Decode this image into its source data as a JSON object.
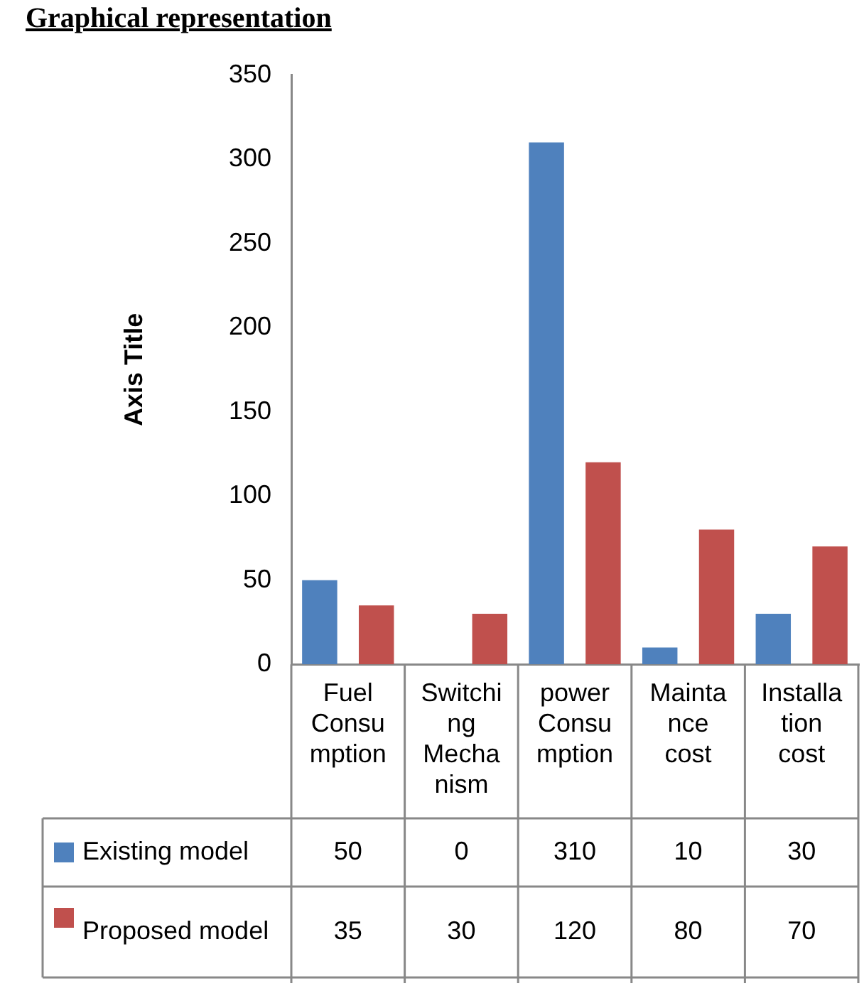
{
  "chart_data": {
    "type": "bar",
    "title": "Graphical representation",
    "ylabel": "Axis Title",
    "categories": [
      "Fuel Consumption",
      "Switching Mechanism",
      "power Consumption",
      "Maintance cost",
      "Installation cost"
    ],
    "series": [
      {
        "name": "Existing model",
        "color": "#4f81bd",
        "values": [
          50,
          0,
          310,
          10,
          30
        ]
      },
      {
        "name": "Proposed model",
        "color": "#c0504d",
        "values": [
          35,
          30,
          120,
          80,
          70
        ]
      }
    ],
    "ylim": [
      0,
      350
    ],
    "yticks": [
      0,
      50,
      100,
      150,
      200,
      250,
      300,
      350
    ],
    "grid": false,
    "legend": "bottom",
    "data_labels": true
  }
}
